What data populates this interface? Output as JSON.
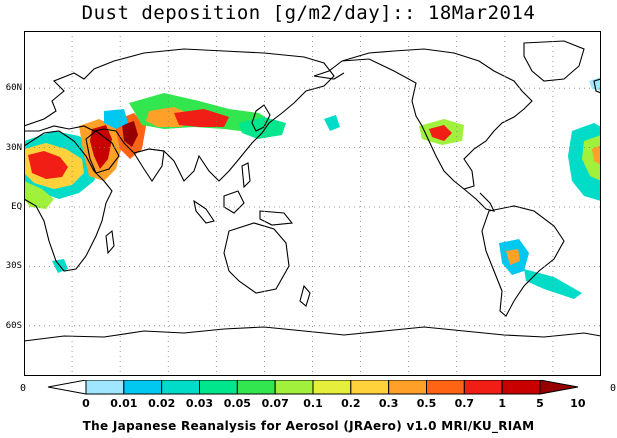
{
  "title": "Dust deposition [g/m2/day]:: 18Mar2014",
  "lat_labels": [
    "60N",
    "30N",
    "EQ",
    "30S",
    "60S"
  ],
  "lat_values": [
    60,
    30,
    0,
    -30,
    -60
  ],
  "lon_edge_labels": {
    "left": "0",
    "right": "0"
  },
  "legend": {
    "ticks": [
      "0",
      "0.01",
      "0.02",
      "0.03",
      "0.05",
      "0.07",
      "0.1",
      "0.2",
      "0.3",
      "0.5",
      "0.7",
      "1",
      "5",
      "10"
    ],
    "colors": [
      "#ffffff",
      "#a0e6ff",
      "#00c8f0",
      "#00dcc8",
      "#00e68c",
      "#32e650",
      "#a0f03c",
      "#e6f03c",
      "#ffd23c",
      "#ffa028",
      "#ff6414",
      "#f01e14",
      "#c80000",
      "#960000"
    ]
  },
  "credit": "The Japanese Reanalysis for Aerosol (JRAero) v1.0 MRI/KU_RIAM",
  "colors": {
    "ocean": "#ffffff",
    "coast": "#000000",
    "grid": "#808080"
  }
}
